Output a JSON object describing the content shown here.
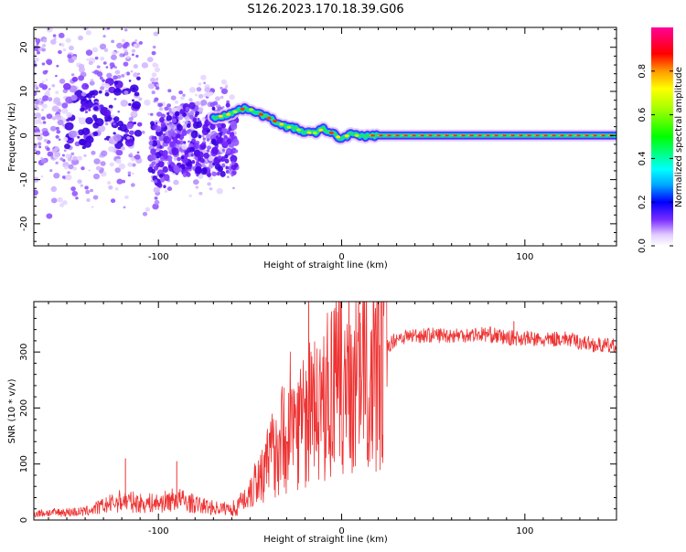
{
  "title": "S126.2023.170.18.39.G06",
  "chart_data": [
    {
      "type": "heatmap",
      "name": "spectrogram",
      "xlabel": "Height of straight line (km)",
      "ylabel": "Frequency (Hz)",
      "xlim": [
        -168,
        150
      ],
      "ylim": [
        -25,
        24.5
      ],
      "xticks": [
        -100,
        0,
        100
      ],
      "yticks": [
        -20,
        -10,
        0,
        10,
        20
      ],
      "colorbar": {
        "label": "Normalized spectral amplitude",
        "range": [
          0,
          1
        ],
        "ticks": [
          0.0,
          0.2,
          0.4,
          0.6,
          0.8
        ],
        "tick_labels": [
          "0.0",
          "0.2",
          "0.4",
          "0.6",
          "0.8"
        ]
      },
      "ridge": {
        "x": [
          -70,
          -65,
          -60,
          -55,
          -50,
          -45,
          -40,
          -35,
          -30,
          -25,
          -20,
          -15,
          -10,
          -5,
          0,
          5,
          10,
          15,
          20,
          40,
          60,
          80,
          100,
          120,
          150
        ],
        "y": [
          4,
          4.5,
          5,
          6,
          6,
          5,
          4,
          3,
          2,
          1.5,
          0.8,
          0.5,
          1.5,
          0.5,
          -0.8,
          0.5,
          -0.3,
          0,
          0,
          0,
          0,
          0,
          0,
          0,
          0
        ]
      }
    },
    {
      "type": "line",
      "name": "snr",
      "xlabel": "Height of straight line (km)",
      "ylabel": "SNR (10 * v/v)",
      "xlim": [
        -168,
        150
      ],
      "ylim": [
        0,
        390
      ],
      "xticks": [
        -100,
        0,
        100
      ],
      "yticks": [
        0,
        100,
        200,
        300
      ],
      "color": "#ee3333",
      "envelope": {
        "x": [
          -168,
          -140,
          -130,
          -120,
          -110,
          -100,
          -90,
          -80,
          -70,
          -60,
          -55,
          -50,
          -45,
          -40,
          -35,
          -30,
          -25,
          -20,
          -15,
          -10,
          -5,
          0,
          5,
          10,
          15,
          20,
          25,
          30,
          40,
          50,
          60,
          80,
          90,
          100,
          110,
          120,
          130,
          140,
          150
        ],
        "values": [
          12,
          15,
          25,
          35,
          30,
          30,
          38,
          28,
          22,
          20,
          28,
          55,
          80,
          100,
          140,
          150,
          180,
          175,
          190,
          210,
          230,
          250,
          250,
          255,
          270,
          290,
          310,
          325,
          330,
          330,
          330,
          332,
          325,
          325,
          320,
          325,
          318,
          312,
          310
        ]
      },
      "spikes": [
        {
          "x": -118,
          "y": 110
        },
        {
          "x": -90,
          "y": 105
        },
        {
          "x": -18,
          "y": 390
        },
        {
          "x": -3,
          "y": 330
        },
        {
          "x": 10,
          "y": 370
        },
        {
          "x": 94,
          "y": 355
        }
      ]
    }
  ]
}
